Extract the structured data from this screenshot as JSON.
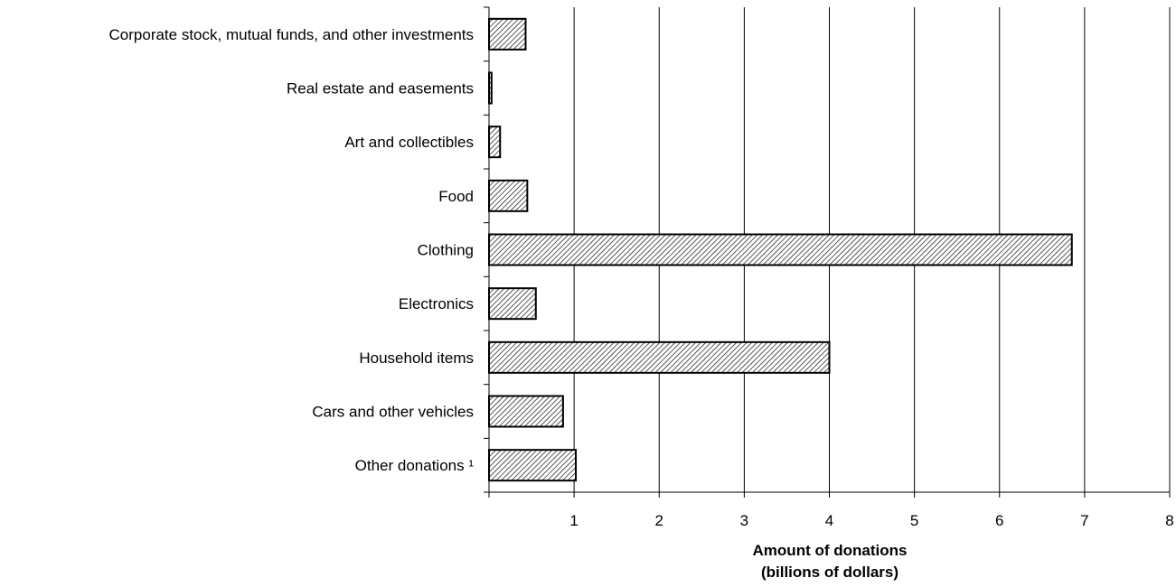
{
  "chart_data": {
    "type": "bar",
    "orientation": "horizontal",
    "title": "",
    "categories": [
      "Corporate stock, mutual funds, and other investments",
      "Real estate and easements",
      "Art and collectibles",
      "Food",
      "Clothing",
      "Electronics",
      "Household items",
      "Cars and other vehicles",
      "Other donations ¹"
    ],
    "values": [
      0.43,
      0.03,
      0.13,
      0.45,
      6.85,
      0.55,
      4.0,
      0.87,
      1.02
    ],
    "xlabel_line1": "Amount of donations",
    "xlabel_line2": "(billions of dollars)",
    "ylabel": "",
    "xlim": [
      0,
      8
    ],
    "xticks": [
      1,
      2,
      3,
      4,
      5,
      6,
      7,
      8
    ],
    "grid": "vertical",
    "bar_fill": "diagonal hatch",
    "colors": {
      "bar_stroke": "#000000",
      "hatch": "#000000",
      "grid": "#000000",
      "background": "#ffffff"
    }
  }
}
